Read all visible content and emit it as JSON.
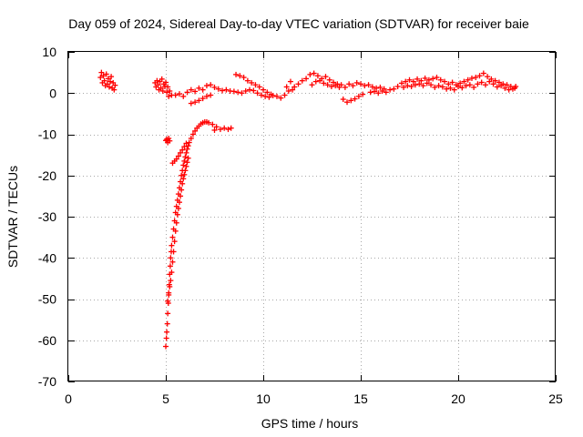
{
  "chart_data": {
    "type": "scatter",
    "title": "Day 059 of 2024, Sidereal Day-to-day VTEC variation (SDTVAR) for receiver baie",
    "xlabel": "GPS time / hours",
    "ylabel": "SDTVAR / TECUs",
    "xlim": [
      0,
      25
    ],
    "ylim": [
      -70,
      10
    ],
    "xticks": [
      0,
      5,
      10,
      15,
      20,
      25
    ],
    "yticks": [
      -70,
      -60,
      -50,
      -40,
      -30,
      -20,
      -10,
      0,
      10
    ],
    "xtick_labels": [
      "0",
      "5",
      "10",
      "15",
      "20",
      "25"
    ],
    "ytick_labels": [
      "-70",
      "-60",
      "-50",
      "-40",
      "-30",
      "-20",
      "-10",
      "0",
      "10"
    ],
    "grid": true,
    "marker": "+",
    "color": "#ff0000",
    "series": [
      {
        "name": "SDTVAR",
        "points": [
          [
            1.65,
            3.8
          ],
          [
            1.7,
            5.0
          ],
          [
            1.75,
            2.5
          ],
          [
            1.8,
            4.2
          ],
          [
            1.85,
            3.0
          ],
          [
            1.9,
            1.8
          ],
          [
            1.95,
            4.6
          ],
          [
            2.0,
            2.2
          ],
          [
            2.05,
            3.5
          ],
          [
            2.1,
            1.5
          ],
          [
            2.15,
            2.8
          ],
          [
            2.2,
            4.0
          ],
          [
            2.25,
            1.2
          ],
          [
            2.3,
            2.5
          ],
          [
            2.35,
            0.8
          ],
          [
            2.4,
            1.9
          ],
          [
            4.45,
            2.5
          ],
          [
            4.5,
            1.5
          ],
          [
            4.55,
            3.0
          ],
          [
            4.6,
            2.0
          ],
          [
            4.65,
            0.8
          ],
          [
            4.7,
            2.8
          ],
          [
            4.75,
            1.2
          ],
          [
            4.8,
            3.4
          ],
          [
            4.85,
            0.5
          ],
          [
            4.9,
            2.2
          ],
          [
            4.95,
            1.6
          ],
          [
            5.0,
            2.6
          ],
          [
            5.05,
            0.2
          ],
          [
            5.1,
            1.5
          ],
          [
            5.15,
            -0.8
          ],
          [
            5.2,
            0.5
          ],
          [
            5.3,
            -0.5
          ],
          [
            5.5,
            -0.5
          ],
          [
            5.7,
            -0.2
          ],
          [
            5.9,
            -0.8
          ],
          [
            6.1,
            0.2
          ],
          [
            6.3,
            0.8
          ],
          [
            6.5,
            0.4
          ],
          [
            6.7,
            1.2
          ],
          [
            6.9,
            0.8
          ],
          [
            7.1,
            1.8
          ],
          [
            7.3,
            2.0
          ],
          [
            7.5,
            1.4
          ],
          [
            7.7,
            1.0
          ],
          [
            7.9,
            0.6
          ],
          [
            8.1,
            0.8
          ],
          [
            8.3,
            0.5
          ],
          [
            6.3,
            -2.5
          ],
          [
            6.5,
            -2.2
          ],
          [
            6.7,
            -1.8
          ],
          [
            6.9,
            -1.3
          ],
          [
            7.1,
            -0.8
          ],
          [
            7.3,
            -0.5
          ],
          [
            8.5,
            0.4
          ],
          [
            8.7,
            0.2
          ],
          [
            8.9,
            0.0
          ],
          [
            9.1,
            0.5
          ],
          [
            9.3,
            0.8
          ],
          [
            9.5,
            0.6
          ],
          [
            9.7,
            0.0
          ],
          [
            9.9,
            -0.5
          ],
          [
            10.1,
            -0.8
          ],
          [
            10.3,
            -1.0
          ],
          [
            10.5,
            -0.6
          ],
          [
            10.7,
            -0.8
          ],
          [
            10.9,
            -1.2
          ],
          [
            11.1,
            -0.5
          ],
          [
            11.3,
            0.5
          ],
          [
            11.5,
            0.8
          ],
          [
            8.6,
            4.5
          ],
          [
            8.8,
            4.2
          ],
          [
            9.0,
            3.8
          ],
          [
            9.2,
            3.0
          ],
          [
            9.4,
            2.5
          ],
          [
            9.6,
            2.0
          ],
          [
            9.8,
            1.5
          ],
          [
            10.0,
            0.8
          ],
          [
            10.2,
            0.2
          ],
          [
            10.4,
            -0.3
          ],
          [
            11.2,
            1.5
          ],
          [
            11.4,
            2.8
          ],
          [
            11.6,
            1.5
          ],
          [
            11.8,
            2.2
          ],
          [
            12.0,
            3.0
          ],
          [
            12.2,
            3.5
          ],
          [
            12.4,
            4.5
          ],
          [
            12.6,
            4.8
          ],
          [
            12.8,
            4.2
          ],
          [
            13.0,
            3.5
          ],
          [
            12.5,
            2.0
          ],
          [
            12.7,
            2.8
          ],
          [
            12.9,
            3.0
          ],
          [
            13.1,
            2.4
          ],
          [
            13.3,
            2.0
          ],
          [
            13.5,
            1.6
          ],
          [
            13.7,
            1.8
          ],
          [
            13.9,
            1.4
          ],
          [
            13.2,
            4.0
          ],
          [
            13.4,
            3.2
          ],
          [
            13.6,
            2.6
          ],
          [
            13.8,
            2.2
          ],
          [
            14.0,
            2.0
          ],
          [
            14.2,
            1.4
          ],
          [
            14.4,
            2.2
          ],
          [
            14.6,
            1.8
          ],
          [
            14.1,
            -1.5
          ],
          [
            14.3,
            -2.2
          ],
          [
            14.5,
            -1.8
          ],
          [
            14.7,
            -1.4
          ],
          [
            14.9,
            -0.8
          ],
          [
            15.1,
            -0.3
          ],
          [
            14.8,
            2.5
          ],
          [
            15.0,
            2.2
          ],
          [
            15.2,
            1.8
          ],
          [
            15.4,
            2.0
          ],
          [
            15.6,
            1.5
          ],
          [
            15.8,
            1.2
          ],
          [
            16.0,
            1.4
          ],
          [
            16.2,
            1.0
          ],
          [
            15.5,
            0.2
          ],
          [
            15.7,
            0.4
          ],
          [
            15.9,
            0.0
          ],
          [
            16.1,
            0.5
          ],
          [
            16.3,
            0.2
          ],
          [
            16.5,
            0.8
          ],
          [
            16.7,
            1.0
          ],
          [
            16.9,
            1.6
          ],
          [
            17.1,
            2.4
          ],
          [
            17.3,
            2.8
          ],
          [
            17.5,
            3.2
          ],
          [
            17.7,
            2.8
          ],
          [
            17.9,
            3.4
          ],
          [
            18.1,
            3.0
          ],
          [
            18.3,
            3.6
          ],
          [
            18.5,
            3.2
          ],
          [
            17.2,
            1.4
          ],
          [
            17.4,
            1.8
          ],
          [
            17.6,
            1.6
          ],
          [
            17.8,
            2.0
          ],
          [
            18.0,
            2.2
          ],
          [
            18.2,
            1.8
          ],
          [
            18.4,
            2.4
          ],
          [
            18.6,
            2.0
          ],
          [
            18.7,
            3.5
          ],
          [
            18.9,
            3.8
          ],
          [
            19.1,
            3.2
          ],
          [
            19.3,
            2.8
          ],
          [
            19.5,
            2.2
          ],
          [
            19.7,
            2.6
          ],
          [
            19.9,
            2.0
          ],
          [
            20.1,
            2.4
          ],
          [
            18.8,
            1.4
          ],
          [
            19.0,
            1.8
          ],
          [
            19.2,
            1.5
          ],
          [
            19.4,
            1.0
          ],
          [
            19.6,
            1.2
          ],
          [
            19.8,
            0.8
          ],
          [
            20.0,
            1.6
          ],
          [
            20.2,
            1.3
          ],
          [
            20.3,
            2.8
          ],
          [
            20.5,
            3.2
          ],
          [
            20.7,
            3.6
          ],
          [
            20.9,
            3.8
          ],
          [
            21.1,
            4.2
          ],
          [
            21.3,
            4.8
          ],
          [
            21.5,
            4.0
          ],
          [
            21.7,
            3.4
          ],
          [
            20.4,
            1.8
          ],
          [
            20.6,
            2.0
          ],
          [
            20.8,
            1.4
          ],
          [
            21.0,
            2.2
          ],
          [
            21.2,
            2.6
          ],
          [
            21.4,
            2.0
          ],
          [
            21.6,
            2.8
          ],
          [
            21.8,
            2.2
          ],
          [
            21.9,
            3.0
          ],
          [
            22.1,
            2.6
          ],
          [
            22.3,
            2.2
          ],
          [
            22.5,
            2.0
          ],
          [
            22.7,
            1.6
          ],
          [
            22.9,
            1.2
          ],
          [
            22.0,
            1.5
          ],
          [
            22.2,
            1.8
          ],
          [
            22.4,
            1.2
          ],
          [
            22.6,
            0.8
          ],
          [
            22.8,
            1.0
          ],
          [
            22.95,
            1.6
          ],
          [
            5.0,
            -11.5
          ],
          [
            5.05,
            -11.2
          ],
          [
            5.1,
            -12.0
          ],
          [
            5.15,
            -11.0
          ],
          [
            5.2,
            -11.6
          ],
          [
            5.0,
            -61.5
          ],
          [
            5.03,
            -59.5
          ],
          [
            5.05,
            -58.0
          ],
          [
            5.08,
            -56.0
          ],
          [
            5.1,
            -53.5
          ],
          [
            5.13,
            -51.0
          ],
          [
            5.15,
            -48.5
          ],
          [
            5.18,
            -46.5
          ],
          [
            5.2,
            -44.0
          ],
          [
            5.23,
            -42.0
          ],
          [
            5.25,
            -40.0
          ],
          [
            5.28,
            -38.5
          ],
          [
            5.3,
            -37.0
          ],
          [
            5.35,
            -35.0
          ],
          [
            5.4,
            -33.0
          ],
          [
            5.45,
            -31.0
          ],
          [
            5.5,
            -29.0
          ],
          [
            5.55,
            -27.5
          ],
          [
            5.6,
            -26.0
          ],
          [
            5.65,
            -24.5
          ],
          [
            5.7,
            -23.0
          ],
          [
            5.75,
            -21.5
          ],
          [
            5.8,
            -20.0
          ],
          [
            5.85,
            -18.8
          ],
          [
            5.9,
            -17.5
          ],
          [
            5.95,
            -16.5
          ],
          [
            6.0,
            -15.5
          ],
          [
            6.05,
            -14.5
          ],
          [
            6.1,
            -13.6
          ],
          [
            6.15,
            -12.8
          ],
          [
            6.2,
            -12.0
          ],
          [
            6.3,
            -11.0
          ],
          [
            6.4,
            -10.0
          ],
          [
            6.5,
            -9.2
          ],
          [
            6.6,
            -8.5
          ],
          [
            6.7,
            -8.0
          ],
          [
            6.8,
            -7.5
          ],
          [
            6.9,
            -7.2
          ],
          [
            7.0,
            -7.0
          ],
          [
            7.1,
            -7.0
          ],
          [
            5.1,
            -50.5
          ],
          [
            5.15,
            -49.0
          ],
          [
            5.2,
            -47.0
          ],
          [
            5.25,
            -45.5
          ],
          [
            5.3,
            -43.5
          ],
          [
            5.35,
            -41.0
          ],
          [
            5.4,
            -38.5
          ],
          [
            5.45,
            -36.0
          ],
          [
            5.5,
            -33.5
          ],
          [
            5.55,
            -31.5
          ],
          [
            5.6,
            -29.5
          ],
          [
            5.65,
            -28.0
          ],
          [
            5.7,
            -26.5
          ],
          [
            5.75,
            -25.0
          ],
          [
            5.8,
            -23.5
          ],
          [
            5.85,
            -22.0
          ],
          [
            5.9,
            -20.8
          ],
          [
            5.95,
            -19.8
          ],
          [
            6.0,
            -18.8
          ],
          [
            6.05,
            -17.8
          ],
          [
            6.1,
            -16.8
          ],
          [
            6.15,
            -15.8
          ],
          [
            5.35,
            -17.0
          ],
          [
            5.45,
            -16.5
          ],
          [
            5.55,
            -16.0
          ],
          [
            5.65,
            -15.3
          ],
          [
            5.75,
            -14.5
          ],
          [
            5.85,
            -13.8
          ],
          [
            5.95,
            -13.0
          ],
          [
            6.05,
            -12.2
          ],
          [
            7.2,
            -7.2
          ],
          [
            7.4,
            -7.6
          ],
          [
            7.6,
            -8.2
          ],
          [
            7.8,
            -8.8
          ],
          [
            8.0,
            -8.5
          ],
          [
            8.2,
            -8.8
          ],
          [
            8.35,
            -8.5
          ],
          [
            7.5,
            -9.0
          ]
        ]
      }
    ]
  }
}
